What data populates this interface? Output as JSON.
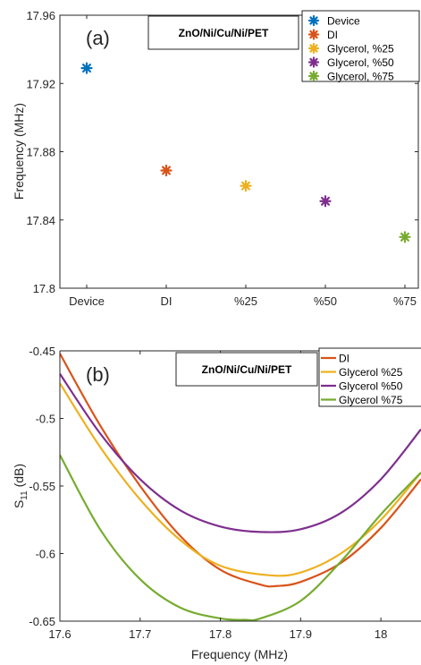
{
  "chart_data": [
    {
      "type": "scatter",
      "panel_label": "(a)",
      "box_label": "ZnO/Ni/Cu/Ni/PET",
      "categories": [
        "Device",
        "DI",
        "%25",
        "%50",
        "%75"
      ],
      "ylabel": "Frequency (MHz)",
      "ylim": [
        17.8,
        17.96
      ],
      "yticks": [
        17.8,
        17.84,
        17.88,
        17.92,
        17.96
      ],
      "ytick_labels": [
        "17.8",
        "17.84",
        "17.88",
        "17.92",
        "17.96"
      ],
      "grid": false,
      "legend_position": "top-right",
      "series": [
        {
          "name": "Device",
          "color": "#0072BD",
          "category": "Device",
          "value": 17.929
        },
        {
          "name": "DI",
          "color": "#D95319",
          "category": "DI",
          "value": 17.869
        },
        {
          "name": "Glycerol, %25",
          "color": "#EDB120",
          "category": "%25",
          "value": 17.86
        },
        {
          "name": "Glycerol, %50",
          "color": "#7E2F8E",
          "category": "%50",
          "value": 17.851
        },
        {
          "name": "Glycerol, %75",
          "color": "#77AC30",
          "category": "%75",
          "value": 17.83
        }
      ]
    },
    {
      "type": "line",
      "panel_label": "(b)",
      "box_label": "ZnO/Ni/Cu/Ni/PET",
      "xlabel": "Frequency (MHz)",
      "ylabel_main": "S",
      "ylabel_sub": "11",
      "ylabel_unit": " (dB)",
      "xlim": [
        17.6,
        18.05
      ],
      "ylim": [
        -0.65,
        -0.45
      ],
      "xticks": [
        17.6,
        17.7,
        17.8,
        17.9,
        18.0
      ],
      "xtick_labels": [
        "17.6",
        "17.7",
        "17.8",
        "17.9",
        "18"
      ],
      "yticks": [
        -0.65,
        -0.6,
        -0.55,
        -0.5,
        -0.45
      ],
      "ytick_labels": [
        "-0.65",
        "-0.6",
        "-0.55",
        "-0.5",
        "-0.45"
      ],
      "grid": false,
      "legend_position": "top-right",
      "series": [
        {
          "name": "DI",
          "color": "#D95319",
          "x": [
            17.6,
            17.65,
            17.7,
            17.75,
            17.8,
            17.85,
            17.87,
            17.9,
            17.95,
            18.0,
            18.05
          ],
          "y": [
            -0.452,
            -0.505,
            -0.55,
            -0.587,
            -0.612,
            -0.623,
            -0.624,
            -0.621,
            -0.607,
            -0.581,
            -0.545
          ]
        },
        {
          "name": "Glycerol %25",
          "color": "#EDB120",
          "x": [
            17.6,
            17.65,
            17.7,
            17.75,
            17.8,
            17.86,
            17.9,
            17.95,
            18.0,
            18.05
          ],
          "y": [
            -0.474,
            -0.521,
            -0.56,
            -0.59,
            -0.609,
            -0.616,
            -0.614,
            -0.6,
            -0.575,
            -0.54
          ]
        },
        {
          "name": "Glycerol %50",
          "color": "#7E2F8E",
          "x": [
            17.6,
            17.65,
            17.7,
            17.75,
            17.8,
            17.85,
            17.9,
            17.95,
            18.0,
            18.05
          ],
          "y": [
            -0.467,
            -0.511,
            -0.545,
            -0.568,
            -0.58,
            -0.584,
            -0.582,
            -0.57,
            -0.545,
            -0.508
          ]
        },
        {
          "name": "Glycerol %75",
          "color": "#77AC30",
          "x": [
            17.6,
            17.65,
            17.7,
            17.75,
            17.8,
            17.83,
            17.85,
            17.9,
            17.95,
            18.0,
            18.05
          ],
          "y": [
            -0.527,
            -0.582,
            -0.619,
            -0.64,
            -0.648,
            -0.649,
            -0.648,
            -0.635,
            -0.606,
            -0.571,
            -0.54
          ]
        }
      ]
    }
  ]
}
